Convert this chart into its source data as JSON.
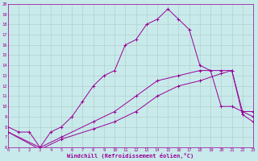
{
  "line1_x": [
    0,
    1,
    2,
    3,
    4,
    5,
    6,
    7,
    8,
    9,
    10,
    11,
    12,
    13,
    14,
    15,
    16,
    17,
    18,
    19,
    20,
    21,
    22,
    23
  ],
  "line1_y": [
    8.0,
    7.5,
    7.5,
    6.0,
    7.5,
    8.0,
    9.0,
    10.5,
    12.0,
    13.0,
    13.5,
    16.0,
    16.5,
    18.0,
    18.5,
    19.5,
    18.5,
    17.5,
    14.0,
    13.5,
    10.0,
    10.0,
    9.5,
    9.5
  ],
  "line2_x": [
    0,
    3,
    5,
    8,
    10,
    12,
    14,
    16,
    18,
    20,
    21,
    22,
    23
  ],
  "line2_y": [
    7.5,
    6.0,
    7.0,
    8.5,
    9.5,
    11.0,
    12.5,
    13.0,
    13.5,
    13.5,
    13.5,
    9.5,
    9.0
  ],
  "line3_x": [
    0,
    3,
    5,
    8,
    10,
    12,
    14,
    16,
    18,
    20,
    21,
    22,
    23
  ],
  "line3_y": [
    7.5,
    5.8,
    6.8,
    7.8,
    8.5,
    9.5,
    11.0,
    12.0,
    12.5,
    13.2,
    13.5,
    9.2,
    8.5
  ],
  "line_color": "#990099",
  "bg_color": "#c8eaea",
  "grid_color": "#b0c8c8",
  "xlabel": "Windchill (Refroidissement éolien,°C)",
  "ylim": [
    6,
    20
  ],
  "xlim": [
    0,
    23
  ],
  "yticks": [
    6,
    7,
    8,
    9,
    10,
    11,
    12,
    13,
    14,
    15,
    16,
    17,
    18,
    19,
    20
  ],
  "xticks": [
    0,
    1,
    2,
    3,
    4,
    5,
    6,
    7,
    8,
    9,
    10,
    11,
    12,
    13,
    14,
    15,
    16,
    17,
    18,
    19,
    20,
    21,
    22,
    23
  ]
}
